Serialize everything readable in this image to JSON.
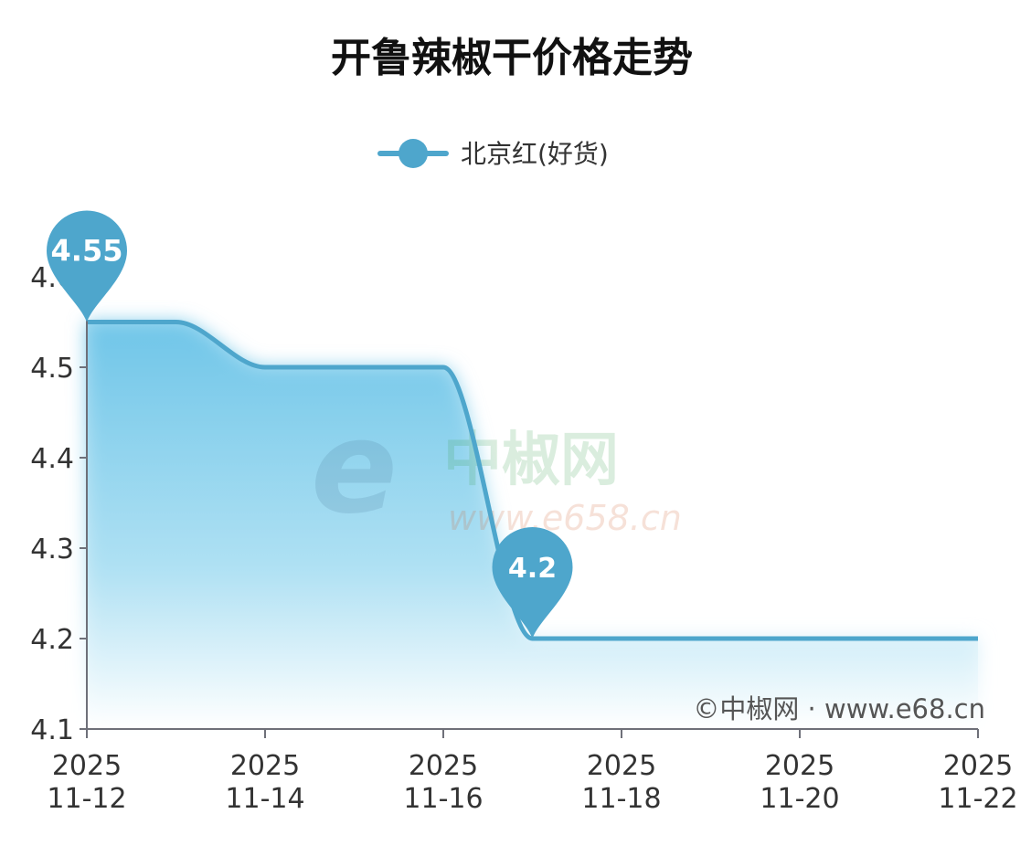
{
  "chart_data": {
    "type": "area",
    "title": "开鲁辣椒干价格走势",
    "xlabel": "",
    "ylabel": "",
    "x": [
      "2025-11-12",
      "2025-11-13",
      "2025-11-14",
      "2025-11-15",
      "2025-11-16",
      "2025-11-17",
      "2025-11-18",
      "2025-11-19",
      "2025-11-20",
      "2025-11-21",
      "2025-11-22"
    ],
    "x_tick_labels": [
      [
        "2025",
        "11-12"
      ],
      [
        "2025",
        "11-14"
      ],
      [
        "2025",
        "11-16"
      ],
      [
        "2025",
        "11-18"
      ],
      [
        "2025",
        "11-20"
      ],
      [
        "2025",
        "11-22"
      ]
    ],
    "y_tick_labels": [
      "4.1",
      "4.2",
      "4.3",
      "4.4",
      "4.5",
      "4.6"
    ],
    "ylim": [
      4.1,
      4.6
    ],
    "grid": false,
    "legend": "top-center",
    "series": [
      {
        "name": "北京红(好货)",
        "values": [
          4.55,
          4.55,
          4.5,
          4.5,
          4.5,
          4.2,
          4.2,
          4.2,
          4.2,
          4.2,
          4.2
        ],
        "color": "#4ea6cc"
      }
    ],
    "annotations": [
      {
        "type": "max-pin",
        "label": "4.55",
        "x": "2025-11-12",
        "y": 4.55
      },
      {
        "type": "min-pin",
        "label": "4.2",
        "x": "2025-11-17",
        "y": 4.2
      }
    ],
    "credit": "©中椒网 · www.e68.cn",
    "watermark": {
      "name": "中椒网",
      "url": "www.e658.cn"
    }
  }
}
